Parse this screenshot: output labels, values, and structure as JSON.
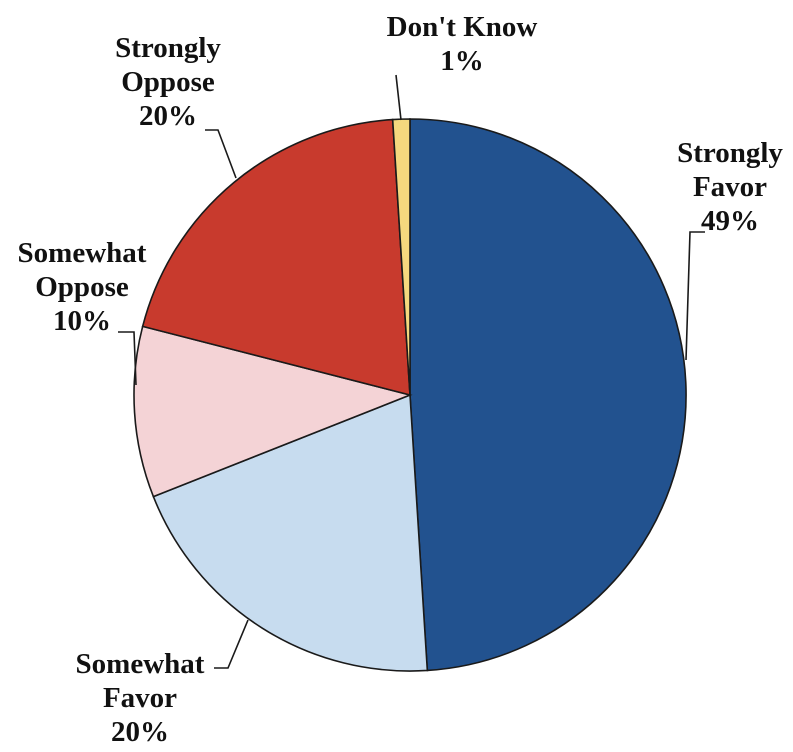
{
  "chart_data": {
    "type": "pie",
    "title": "",
    "slices": [
      {
        "label_lines": [
          "Strongly",
          "Favor"
        ],
        "pct_label": "49%",
        "value": 49,
        "color": "#22528f"
      },
      {
        "label_lines": [
          "Somewhat",
          "Favor"
        ],
        "pct_label": "20%",
        "value": 20,
        "color": "#c7dcef"
      },
      {
        "label_lines": [
          "Somewhat",
          "Oppose"
        ],
        "pct_label": "10%",
        "value": 10,
        "color": "#f4d3d6"
      },
      {
        "label_lines": [
          "Strongly",
          "Oppose"
        ],
        "pct_label": "20%",
        "value": 20,
        "color": "#c83a2d"
      },
      {
        "label_lines": [
          "Don't Know"
        ],
        "pct_label": "1%",
        "value": 1,
        "color": "#f5d87e"
      }
    ],
    "start": "12 o'clock",
    "direction": "clockwise",
    "legend": "none, labels placed around the pie"
  }
}
